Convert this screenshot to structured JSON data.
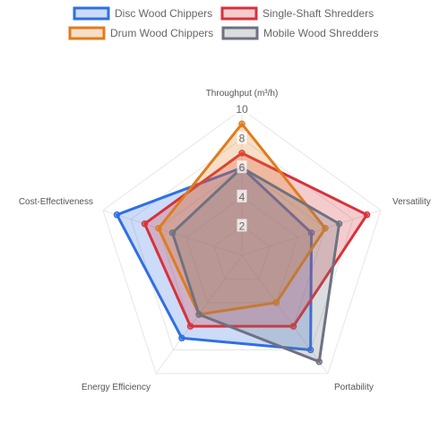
{
  "chart_data": {
    "type": "radar",
    "axes": [
      "Throughput (m³/h)",
      "Versatility",
      "Portability",
      "Energy Efficiency",
      "Cost-Effectiveness"
    ],
    "rlim": [
      0,
      10
    ],
    "ticks": [
      "2",
      "4",
      "6",
      "8",
      "10"
    ],
    "tick_values": [
      2,
      4,
      6,
      8,
      10
    ],
    "grid": true,
    "legend_position": "top",
    "series": [
      {
        "name": "Disc Wood Chippers",
        "values": [
          6,
          5,
          8,
          7,
          9
        ],
        "border": "#2F6FE4",
        "fill": "rgba(47,111,228,0.25)"
      },
      {
        "name": "Single-Shaft Shredders",
        "values": [
          7,
          9,
          6,
          6,
          7
        ],
        "border": "#D8323A",
        "fill": "rgba(216,50,58,0.25)"
      },
      {
        "name": "Drum Wood Chippers",
        "values": [
          9,
          6,
          4,
          5,
          6
        ],
        "border": "#E07C1C",
        "fill": "rgba(224,124,28,0.25)"
      },
      {
        "name": "Mobile Wood Shredders",
        "values": [
          6,
          7,
          9,
          5,
          5
        ],
        "border": "#6E7280",
        "fill": "rgba(110,114,128,0.25)"
      }
    ]
  }
}
